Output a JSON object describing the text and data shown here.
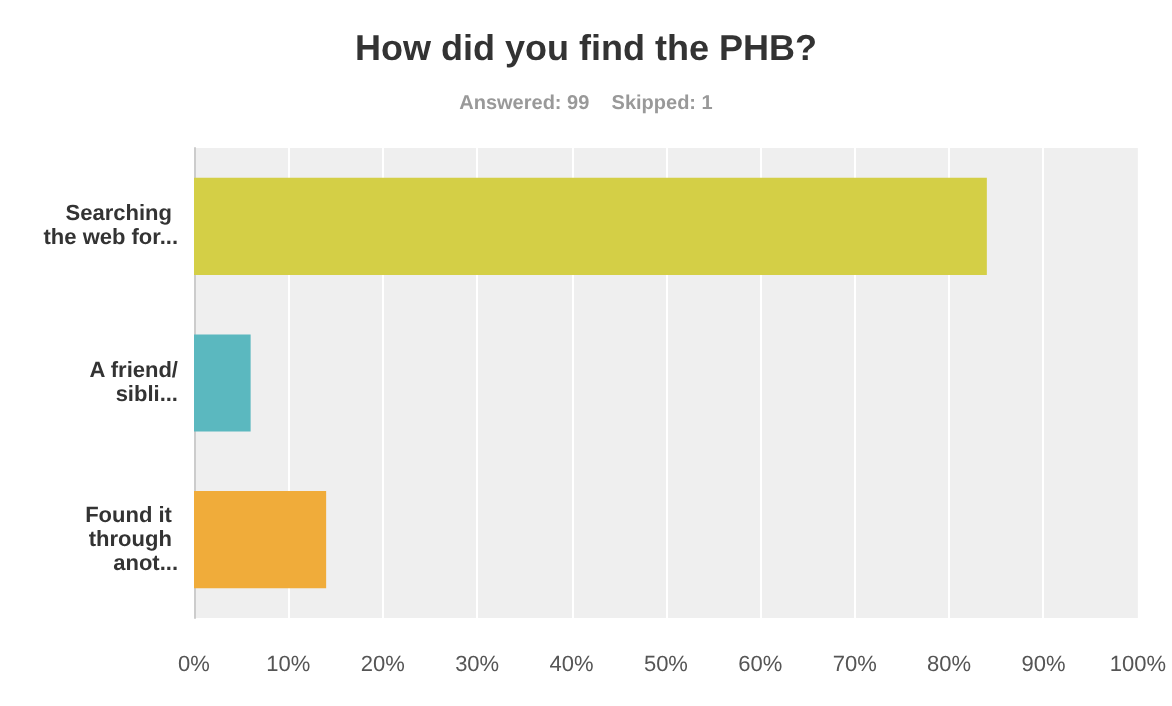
{
  "chart_data": {
    "type": "bar",
    "orientation": "horizontal",
    "title": "How did you find the PHB?",
    "subtitle": "Answered: 99    Skipped: 1",
    "categories": [
      "Searching the web for...",
      "A friend/sibli...",
      "Found it through anot..."
    ],
    "values": [
      84,
      6,
      14
    ],
    "colors": [
      "#d4cf46",
      "#5bb8bf",
      "#f0ac3a"
    ],
    "xlim": [
      0,
      100
    ],
    "xticks": [
      {
        "value": 0,
        "label": "0%"
      },
      {
        "value": 10,
        "label": "10%"
      },
      {
        "value": 20,
        "label": "20%"
      },
      {
        "value": 30,
        "label": "30%"
      },
      {
        "value": 40,
        "label": "40%"
      },
      {
        "value": 50,
        "label": "50%"
      },
      {
        "value": 60,
        "label": "60%"
      },
      {
        "value": 70,
        "label": "70%"
      },
      {
        "value": 80,
        "label": "80%"
      },
      {
        "value": 90,
        "label": "90%"
      },
      {
        "value": 100,
        "label": "100%"
      }
    ],
    "grid": "x"
  }
}
